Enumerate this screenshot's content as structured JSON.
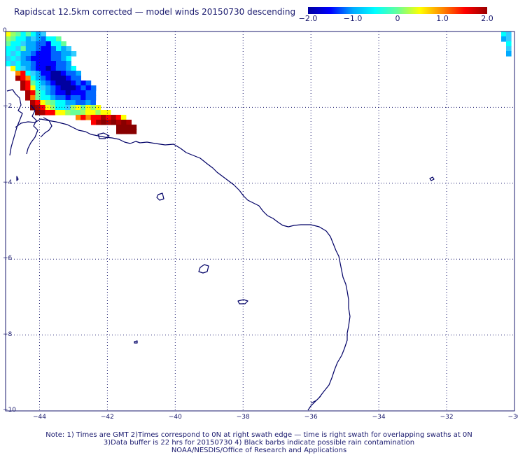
{
  "title": "Rapidscat 12.5km corrected — model winds 20150730 descending",
  "colorbar": {
    "stops": [
      "#0000a0",
      "#0000ff",
      "#00aaff",
      "#00ffff",
      "#66ff99",
      "#ffff00",
      "#ff8800",
      "#ff0000",
      "#990000"
    ],
    "ticks": [
      {
        "label": "−2.0",
        "value": -2.0
      },
      {
        "label": "−1.0",
        "value": -1.0
      },
      {
        "label": "0",
        "value": 0
      },
      {
        "label": "1.0",
        "value": 1.0
      },
      {
        "label": "2.0",
        "value": 2.0
      }
    ],
    "min": -2.0,
    "max": 2.0
  },
  "map": {
    "lon_range": [
      -45,
      -30
    ],
    "lat_range": [
      -10,
      0
    ],
    "lat_ticks": [
      {
        "value": 0,
        "label": "0"
      },
      {
        "value": -2,
        "label": "−2"
      },
      {
        "value": -4,
        "label": "−4"
      },
      {
        "value": -6,
        "label": "−6"
      },
      {
        "value": -8,
        "label": "−8"
      },
      {
        "value": -10,
        "label": "−10"
      }
    ],
    "lon_ticks": [
      {
        "value": -44,
        "label": "−44"
      },
      {
        "value": -42,
        "label": "−42"
      },
      {
        "value": -40,
        "label": "−40"
      },
      {
        "value": -38,
        "label": "−38"
      },
      {
        "value": -36,
        "label": "−36"
      },
      {
        "value": -34,
        "label": "−34"
      },
      {
        "value": -32,
        "label": "−32"
      },
      {
        "value": -30,
        "label": "−30"
      }
    ],
    "coast_color": "#000066",
    "grid_color": "#1a1a6e"
  },
  "notes": {
    "line1": "Note: 1) Times are GMT 2)Times correspond to 0N at right swath edge — time is right swath for overlapping swaths at 0N",
    "line2": "3)Data buffer is 22 hrs for 20150730 4) Black barbs indicate possible rain contamination",
    "line3": "NOAA/NESDIS/Office of Research and Applications"
  }
}
